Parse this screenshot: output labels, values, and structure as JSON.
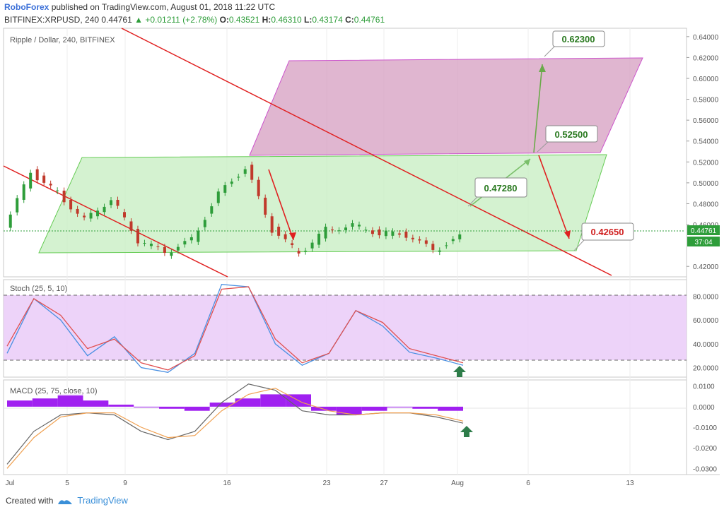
{
  "header": {
    "publisher": "RoboForex",
    "published_text": "published on TradingView.com, August 01, 2018 11:22 UTC",
    "symbol": "BITFINEX:XRPUSD, 240",
    "last": "0.44761",
    "change_icon": "triangle-up-icon",
    "change": "+0.01211 (+2.78%)",
    "o_label": "O:",
    "o": "0.43521",
    "h_label": "H:",
    "h": "0.46310",
    "l_label": "L:",
    "l": "0.43174",
    "c_label": "C:",
    "c": "0.44761"
  },
  "panes": {
    "price_title": "Ripple / Dollar, 240, BITFINEX",
    "stoch_title": "Stoch (25, 5, 10)",
    "macd_title": "MACD (25, 75, close, 10)"
  },
  "price_badge": {
    "value": "0.44761",
    "countdown": "37:04"
  },
  "footer": {
    "created_with": "Created with",
    "brand": "TradingView",
    "logo_icon": "tradingview-logo-icon"
  },
  "colors": {
    "up": "#2e9d3a",
    "down": "#c0392b",
    "brand": "#3a6fd8",
    "green_channel": "#9be89b",
    "pink_channel": "#d9a0c0",
    "red_line": "#e02020",
    "stoch_k": "#4a90e2",
    "stoch_d": "#e05050",
    "stoch_band": "#e8c8f8",
    "macd_hist": "#a020f0",
    "macd_line": "#666666",
    "macd_signal": "#f0a050"
  },
  "chart_data": [
    {
      "type": "candlestick",
      "title": "Ripple / Dollar, 240, BITFINEX",
      "x_ticks": [
        "Jul",
        "5",
        "9",
        "16",
        "23",
        "27",
        "Aug",
        "6",
        "13"
      ],
      "y_ticks": [
        "0.64000",
        "0.62000",
        "0.60000",
        "0.58000",
        "0.56000",
        "0.54000",
        "0.52000",
        "0.50000",
        "0.48000",
        "0.46000",
        "0.44761",
        "0.42000"
      ],
      "ylim": [
        0.41,
        0.648
      ],
      "close_series": [
        {
          "x": "Jul",
          "y": 0.455
        },
        {
          "x": "3",
          "y": 0.51
        },
        {
          "x": "5",
          "y": 0.49
        },
        {
          "x": "6",
          "y": 0.465
        },
        {
          "x": "9",
          "y": 0.485
        },
        {
          "x": "11",
          "y": 0.445
        },
        {
          "x": "13",
          "y": 0.433
        },
        {
          "x": "16",
          "y": 0.445
        },
        {
          "x": "17",
          "y": 0.49
        },
        {
          "x": "18",
          "y": 0.515
        },
        {
          "x": "20",
          "y": 0.455
        },
        {
          "x": "21",
          "y": 0.432
        },
        {
          "x": "23",
          "y": 0.455
        },
        {
          "x": "25",
          "y": 0.46
        },
        {
          "x": "27",
          "y": 0.452
        },
        {
          "x": "29",
          "y": 0.45
        },
        {
          "x": "31",
          "y": 0.435
        },
        {
          "x": "Aug",
          "y": 0.4476
        }
      ],
      "annotations": [
        {
          "text": "0.62300",
          "color": "green"
        },
        {
          "text": "0.52500",
          "color": "green"
        },
        {
          "text": "0.47280",
          "color": "green"
        },
        {
          "text": "0.42650",
          "color": "red"
        }
      ]
    },
    {
      "type": "line",
      "title": "Stoch (25, 5, 10)",
      "y_ticks": [
        "80.0000",
        "60.0000",
        "40.0000",
        "20.0000"
      ],
      "ylim": [
        12,
        94
      ],
      "bands": [
        20,
        80
      ],
      "series": [
        {
          "values": [
            32,
            78,
            60,
            30,
            46,
            20,
            16,
            32,
            90,
            88,
            40,
            22,
            32,
            68,
            55,
            33,
            28,
            22
          ]
        },
        {
          "values": [
            38,
            78,
            64,
            36,
            44,
            24,
            18,
            30,
            86,
            88,
            44,
            24,
            32,
            68,
            58,
            36,
            30,
            24
          ]
        }
      ]
    },
    {
      "type": "line",
      "title": "MACD (25, 75, close, 10)",
      "y_ticks": [
        "0.0100",
        "0.0000",
        "-0.0100",
        "-0.0200",
        "-0.0300"
      ],
      "ylim": [
        -0.033,
        0.013
      ],
      "histogram": [
        0.003,
        0.004,
        0.006,
        0.003,
        0.001,
        0.0,
        -0.001,
        -0.002,
        0.002,
        0.004,
        0.006,
        0.006,
        -0.002,
        -0.004,
        -0.002,
        0.0,
        -0.001,
        -0.002
      ],
      "series": [
        {
          "values": [
            -0.028,
            -0.012,
            -0.004,
            -0.003,
            -0.004,
            -0.012,
            -0.016,
            -0.012,
            0.002,
            0.011,
            0.008,
            -0.002,
            -0.004,
            -0.004,
            -0.003,
            -0.003,
            -0.005,
            -0.008
          ]
        },
        {
          "values": [
            -0.03,
            -0.015,
            -0.005,
            -0.003,
            -0.003,
            -0.01,
            -0.015,
            -0.014,
            -0.002,
            0.006,
            0.009,
            0.002,
            -0.002,
            -0.004,
            -0.003,
            -0.003,
            -0.004,
            -0.007
          ]
        }
      ]
    }
  ]
}
